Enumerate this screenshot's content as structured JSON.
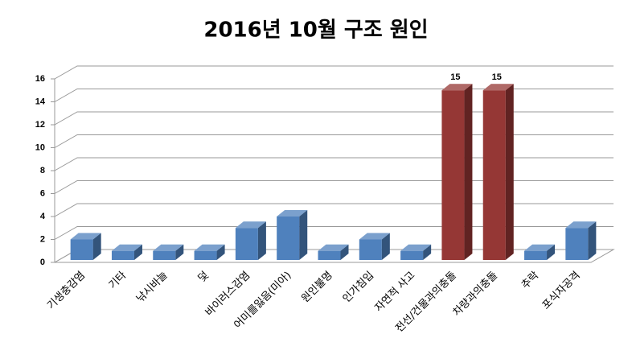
{
  "chart_data": {
    "type": "bar3d",
    "title": "2016년 10월 구조 원인",
    "categories": [
      "기생충감염",
      "기타",
      "낚시바늘",
      "덫",
      "바이러스감염",
      "어미를잃음(미아)",
      "원인불명",
      "인가침입",
      "자연적 사고",
      "전선/건물과의충돌",
      "차량과의충돌",
      "추락",
      "포식자공격"
    ],
    "values": [
      2,
      1,
      1,
      1,
      3,
      4,
      1,
      2,
      1,
      15,
      15,
      1,
      3
    ],
    "value_labels": [
      null,
      null,
      null,
      null,
      null,
      null,
      null,
      null,
      null,
      "15",
      "15",
      null,
      null
    ],
    "colors": [
      "#4f81bd",
      "#4f81bd",
      "#4f81bd",
      "#4f81bd",
      "#4f81bd",
      "#4f81bd",
      "#4f81bd",
      "#4f81bd",
      "#4f81bd",
      "#953735",
      "#953735",
      "#4f81bd",
      "#4f81bd"
    ],
    "ylim": [
      0,
      16
    ],
    "yticks": [
      0,
      2,
      4,
      6,
      8,
      10,
      12,
      14,
      16
    ],
    "grid": true
  }
}
